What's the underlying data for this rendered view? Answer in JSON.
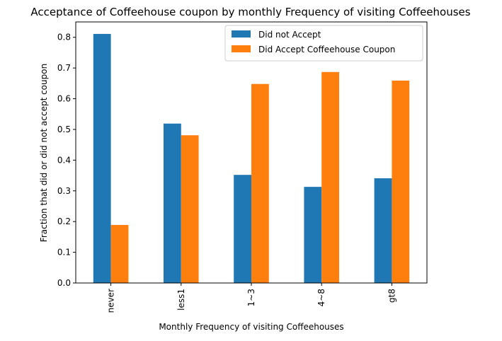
{
  "chart_data": {
    "type": "bar",
    "title": "Acceptance of Coffeehouse coupon by monthly Frequency of visiting Coffeehouses",
    "xlabel": "Monthly Frequency of visiting Coffeehouses",
    "ylabel": "Fraction that did or did not accept coupon",
    "categories": [
      "never",
      "less1",
      "1~3",
      "4~8",
      "gt8"
    ],
    "series": [
      {
        "name": "Did not Accept",
        "color": "#1f77b4",
        "values": [
          0.811,
          0.519,
          0.352,
          0.313,
          0.341
        ]
      },
      {
        "name": "Did Accept Coffeehouse Coupon",
        "color": "#ff7f0e",
        "values": [
          0.189,
          0.481,
          0.648,
          0.687,
          0.659
        ]
      }
    ],
    "ylim": [
      0,
      0.85
    ],
    "yticks": [
      0.0,
      0.1,
      0.2,
      0.3,
      0.4,
      0.5,
      0.6,
      0.7,
      0.8
    ],
    "ytick_labels": [
      "0.0",
      "0.1",
      "0.2",
      "0.3",
      "0.4",
      "0.5",
      "0.6",
      "0.7",
      "0.8"
    ],
    "grid": false,
    "legend_position": "top-right"
  }
}
